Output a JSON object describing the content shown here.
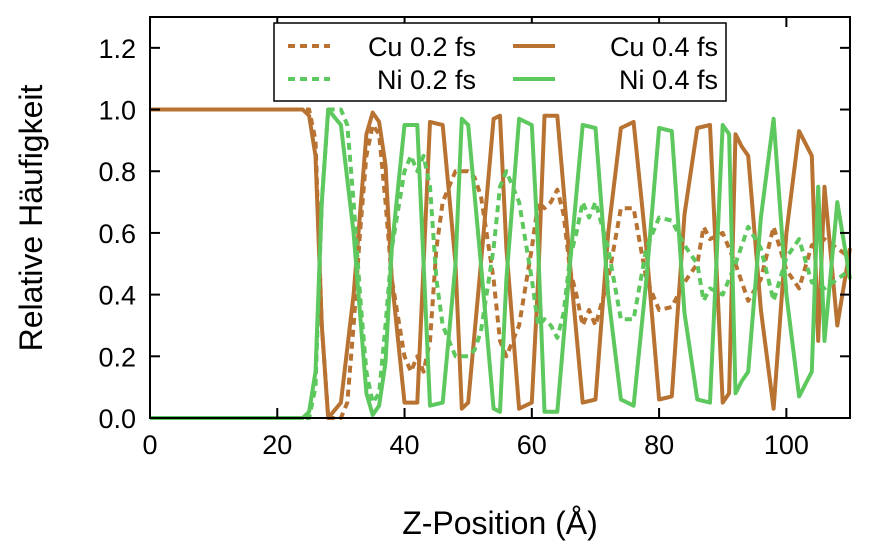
{
  "chart_data": {
    "type": "line",
    "title": "",
    "xlabel": "Z-Position (Å)",
    "ylabel": "Relative Häufigkeit",
    "xlim": [
      0,
      110
    ],
    "ylim": [
      0,
      1.3
    ],
    "x_ticks": [
      "0",
      "20",
      "40",
      "60",
      "80",
      "100"
    ],
    "y_ticks": [
      "0.0",
      "0.2",
      "0.4",
      "0.6",
      "0.8",
      "1.0",
      "1.2"
    ],
    "grid": false,
    "legend_position": "top-center",
    "colors": {
      "cu": "#b87333",
      "ni": "#5dc85d"
    },
    "series": [
      {
        "name": "Cu 0.2 fs",
        "color": "#b87333",
        "dash": "dashed",
        "x": [
          0,
          24,
          25,
          26,
          27,
          28,
          30,
          31,
          32,
          33,
          34,
          35,
          36,
          37,
          38,
          40,
          41,
          42,
          43,
          44,
          45,
          46,
          48,
          50,
          51,
          52,
          54,
          55,
          56,
          57,
          58,
          60,
          61,
          62,
          63,
          64,
          65,
          66,
          67,
          68,
          69,
          70,
          72,
          74,
          76,
          78,
          80,
          82,
          84,
          86,
          87,
          88,
          90,
          92,
          94,
          96,
          98,
          100,
          102,
          104,
          106,
          108,
          110
        ],
        "y": [
          1.0,
          1.0,
          1.0,
          0.9,
          0.3,
          0.0,
          0.0,
          0.05,
          0.3,
          0.6,
          0.85,
          0.95,
          0.92,
          0.7,
          0.45,
          0.2,
          0.15,
          0.2,
          0.15,
          0.25,
          0.55,
          0.7,
          0.8,
          0.8,
          0.78,
          0.72,
          0.45,
          0.25,
          0.2,
          0.25,
          0.3,
          0.55,
          0.7,
          0.68,
          0.7,
          0.74,
          0.66,
          0.48,
          0.4,
          0.3,
          0.35,
          0.3,
          0.45,
          0.68,
          0.68,
          0.45,
          0.35,
          0.36,
          0.44,
          0.5,
          0.62,
          0.58,
          0.6,
          0.5,
          0.38,
          0.45,
          0.62,
          0.48,
          0.42,
          0.56,
          0.58,
          0.55,
          0.52
        ]
      },
      {
        "name": "Cu 0.4 fs",
        "color": "#b87333",
        "dash": "solid",
        "x": [
          0,
          24,
          25,
          26,
          27,
          28,
          30,
          32,
          34,
          35,
          36,
          37,
          38,
          40,
          42,
          43,
          44,
          46,
          48,
          49,
          50,
          52,
          54,
          55,
          56,
          58,
          60,
          61,
          62,
          64,
          66,
          68,
          70,
          72,
          74,
          76,
          78,
          80,
          82,
          84,
          86,
          88,
          90,
          91,
          92,
          93,
          94,
          96,
          98,
          100,
          102,
          104,
          105,
          106,
          108,
          110
        ],
        "y": [
          1.0,
          1.0,
          0.98,
          0.85,
          0.3,
          0.0,
          0.05,
          0.4,
          0.92,
          0.99,
          0.96,
          0.82,
          0.45,
          0.05,
          0.05,
          0.5,
          0.96,
          0.95,
          0.5,
          0.03,
          0.05,
          0.5,
          0.97,
          0.98,
          0.55,
          0.03,
          0.05,
          0.45,
          0.98,
          0.98,
          0.5,
          0.05,
          0.06,
          0.6,
          0.94,
          0.96,
          0.55,
          0.06,
          0.07,
          0.66,
          0.94,
          0.95,
          0.05,
          0.08,
          0.92,
          0.88,
          0.85,
          0.35,
          0.03,
          0.6,
          0.93,
          0.85,
          0.25,
          0.75,
          0.3,
          0.55
        ]
      },
      {
        "name": "Ni 0.2 fs",
        "color": "#5dc85d",
        "dash": "dashed",
        "x": [
          0,
          24,
          25,
          26,
          27,
          28,
          30,
          31,
          32,
          33,
          34,
          35,
          36,
          37,
          38,
          40,
          41,
          42,
          43,
          44,
          45,
          46,
          48,
          50,
          51,
          52,
          54,
          55,
          56,
          57,
          58,
          60,
          61,
          62,
          63,
          64,
          65,
          66,
          67,
          68,
          69,
          70,
          72,
          74,
          76,
          78,
          80,
          82,
          84,
          86,
          87,
          88,
          90,
          92,
          94,
          96,
          98,
          100,
          102,
          104,
          106,
          108,
          110
        ],
        "y": [
          0.0,
          0.0,
          0.0,
          0.1,
          0.7,
          1.0,
          1.0,
          0.95,
          0.7,
          0.4,
          0.15,
          0.05,
          0.08,
          0.3,
          0.55,
          0.8,
          0.85,
          0.8,
          0.85,
          0.75,
          0.45,
          0.3,
          0.2,
          0.2,
          0.22,
          0.28,
          0.55,
          0.75,
          0.8,
          0.75,
          0.7,
          0.45,
          0.3,
          0.32,
          0.3,
          0.26,
          0.34,
          0.52,
          0.6,
          0.7,
          0.65,
          0.7,
          0.55,
          0.32,
          0.32,
          0.55,
          0.65,
          0.64,
          0.56,
          0.5,
          0.38,
          0.42,
          0.4,
          0.5,
          0.62,
          0.55,
          0.38,
          0.52,
          0.58,
          0.44,
          0.42,
          0.45,
          0.48
        ]
      },
      {
        "name": "Ni 0.4 fs",
        "color": "#5dc85d",
        "dash": "solid",
        "x": [
          0,
          24,
          25,
          26,
          27,
          28,
          30,
          32,
          34,
          35,
          36,
          37,
          38,
          40,
          42,
          43,
          44,
          46,
          48,
          49,
          50,
          52,
          54,
          55,
          56,
          58,
          60,
          61,
          62,
          64,
          66,
          68,
          70,
          72,
          74,
          76,
          78,
          80,
          82,
          84,
          86,
          88,
          90,
          91,
          92,
          93,
          94,
          96,
          98,
          100,
          102,
          104,
          105,
          106,
          108,
          110
        ],
        "y": [
          0.0,
          0.0,
          0.02,
          0.15,
          0.7,
          1.0,
          0.95,
          0.6,
          0.08,
          0.01,
          0.04,
          0.18,
          0.55,
          0.95,
          0.95,
          0.5,
          0.04,
          0.05,
          0.5,
          0.97,
          0.95,
          0.5,
          0.03,
          0.02,
          0.45,
          0.97,
          0.95,
          0.55,
          0.02,
          0.02,
          0.5,
          0.95,
          0.94,
          0.4,
          0.06,
          0.04,
          0.45,
          0.94,
          0.93,
          0.34,
          0.06,
          0.05,
          0.95,
          0.92,
          0.08,
          0.12,
          0.15,
          0.65,
          0.97,
          0.4,
          0.07,
          0.15,
          0.75,
          0.25,
          0.7,
          0.45
        ]
      }
    ]
  }
}
